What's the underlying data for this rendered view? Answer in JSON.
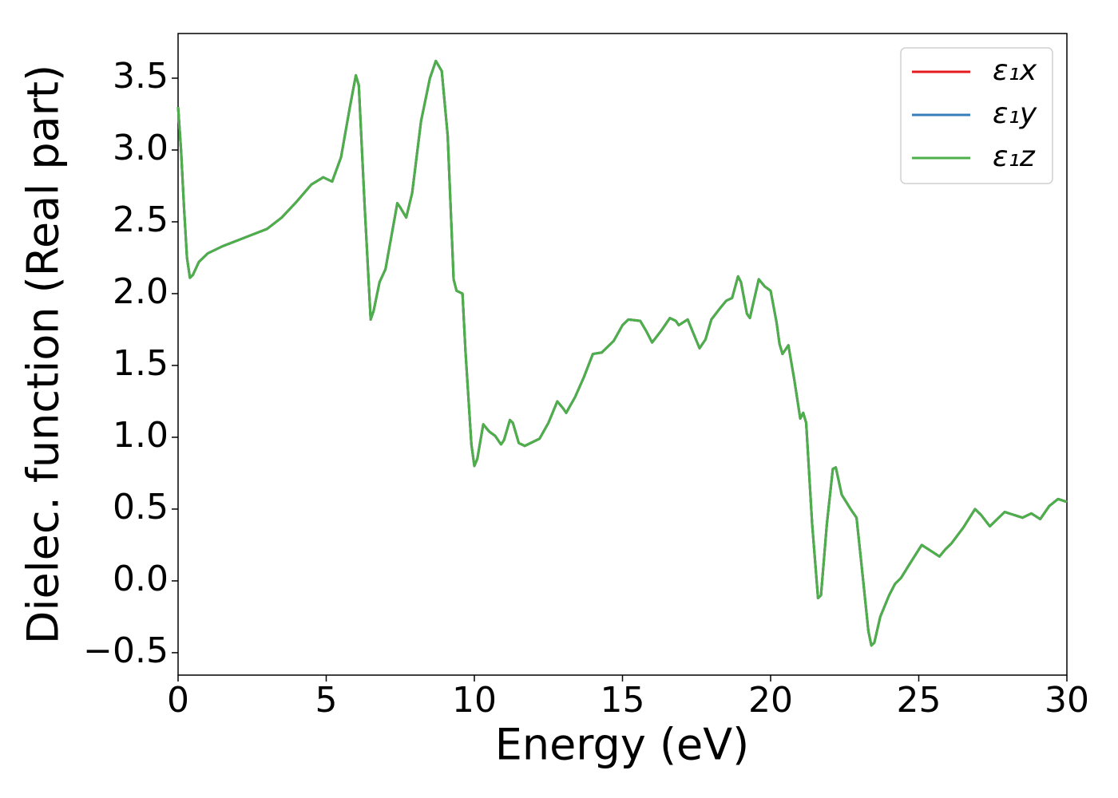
{
  "chart_data": {
    "type": "line",
    "xlabel": "Energy (eV)",
    "ylabel": "Dielec. function (Real part)",
    "x": [
      0,
      0.1,
      0.2,
      0.3,
      0.4,
      0.5,
      0.7,
      1.0,
      1.5,
      2.0,
      2.5,
      3.0,
      3.5,
      4.0,
      4.5,
      4.9,
      5.2,
      5.5,
      5.8,
      6.0,
      6.1,
      6.3,
      6.5,
      6.6,
      6.8,
      7.0,
      7.2,
      7.4,
      7.5,
      7.7,
      7.9,
      8.2,
      8.5,
      8.7,
      8.9,
      9.1,
      9.3,
      9.4,
      9.6,
      9.7,
      9.9,
      10.0,
      10.1,
      10.3,
      10.5,
      10.7,
      10.9,
      11.0,
      11.2,
      11.3,
      11.5,
      11.7,
      12.0,
      12.2,
      12.5,
      12.8,
      13.0,
      13.1,
      13.4,
      13.7,
      14.0,
      14.3,
      14.7,
      15.0,
      15.2,
      15.6,
      15.8,
      16.0,
      16.3,
      16.6,
      16.8,
      16.9,
      17.2,
      17.4,
      17.6,
      17.8,
      18.0,
      18.3,
      18.5,
      18.7,
      18.9,
      19.0,
      19.2,
      19.3,
      19.6,
      19.8,
      20.0,
      20.2,
      20.3,
      20.4,
      20.6,
      20.8,
      21.0,
      21.1,
      21.2,
      21.4,
      21.6,
      21.7,
      21.9,
      22.1,
      22.2,
      22.4,
      22.7,
      22.9,
      23.1,
      23.3,
      23.4,
      23.5,
      23.7,
      24.0,
      24.2,
      24.4,
      24.7,
      25.1,
      25.4,
      25.7,
      25.9,
      26.1,
      26.5,
      26.9,
      27.1,
      27.4,
      27.7,
      27.9,
      28.2,
      28.5,
      28.8,
      29.1,
      29.4,
      29.7,
      30.0
    ],
    "series": [
      {
        "name": "ε₁x",
        "color": "#e41a1c",
        "values": [
          3.3,
          3.0,
          2.6,
          2.25,
          2.11,
          2.13,
          2.22,
          2.28,
          2.33,
          2.37,
          2.41,
          2.45,
          2.53,
          2.64,
          2.76,
          2.81,
          2.78,
          2.95,
          3.3,
          3.52,
          3.45,
          2.6,
          1.82,
          1.88,
          2.08,
          2.17,
          2.4,
          2.63,
          2.6,
          2.53,
          2.7,
          3.2,
          3.5,
          3.62,
          3.55,
          3.1,
          2.1,
          2.02,
          2.0,
          1.6,
          0.95,
          0.8,
          0.85,
          1.09,
          1.04,
          1.01,
          0.95,
          0.98,
          1.12,
          1.1,
          0.96,
          0.94,
          0.97,
          0.99,
          1.1,
          1.25,
          1.2,
          1.17,
          1.28,
          1.42,
          1.58,
          1.59,
          1.67,
          1.78,
          1.82,
          1.81,
          1.74,
          1.66,
          1.74,
          1.83,
          1.81,
          1.78,
          1.82,
          1.72,
          1.62,
          1.68,
          1.82,
          1.9,
          1.95,
          1.97,
          2.12,
          2.08,
          1.86,
          1.83,
          2.1,
          2.05,
          2.02,
          1.8,
          1.65,
          1.58,
          1.64,
          1.4,
          1.13,
          1.17,
          1.1,
          0.4,
          -0.12,
          -0.1,
          0.4,
          0.78,
          0.79,
          0.6,
          0.5,
          0.44,
          0.05,
          -0.35,
          -0.45,
          -0.43,
          -0.25,
          -0.1,
          -0.02,
          0.02,
          0.12,
          0.25,
          0.21,
          0.17,
          0.22,
          0.26,
          0.37,
          0.5,
          0.46,
          0.38,
          0.44,
          0.48,
          0.46,
          0.44,
          0.47,
          0.43,
          0.52,
          0.57,
          0.55
        ]
      },
      {
        "name": "ε₁y",
        "color": "#377eb8",
        "values": [
          3.3,
          3.0,
          2.6,
          2.25,
          2.11,
          2.13,
          2.22,
          2.28,
          2.33,
          2.37,
          2.41,
          2.45,
          2.53,
          2.64,
          2.76,
          2.81,
          2.78,
          2.95,
          3.3,
          3.52,
          3.45,
          2.6,
          1.82,
          1.88,
          2.08,
          2.17,
          2.4,
          2.63,
          2.6,
          2.53,
          2.7,
          3.2,
          3.5,
          3.62,
          3.55,
          3.1,
          2.1,
          2.02,
          2.0,
          1.6,
          0.95,
          0.8,
          0.85,
          1.09,
          1.04,
          1.01,
          0.95,
          0.98,
          1.12,
          1.1,
          0.96,
          0.94,
          0.97,
          0.99,
          1.1,
          1.25,
          1.2,
          1.17,
          1.28,
          1.42,
          1.58,
          1.59,
          1.67,
          1.78,
          1.82,
          1.81,
          1.74,
          1.66,
          1.74,
          1.83,
          1.81,
          1.78,
          1.82,
          1.72,
          1.62,
          1.68,
          1.82,
          1.9,
          1.95,
          1.97,
          2.12,
          2.08,
          1.86,
          1.83,
          2.1,
          2.05,
          2.02,
          1.8,
          1.65,
          1.58,
          1.64,
          1.4,
          1.13,
          1.17,
          1.1,
          0.4,
          -0.12,
          -0.1,
          0.4,
          0.78,
          0.79,
          0.6,
          0.5,
          0.44,
          0.05,
          -0.35,
          -0.45,
          -0.43,
          -0.25,
          -0.1,
          -0.02,
          0.02,
          0.12,
          0.25,
          0.21,
          0.17,
          0.22,
          0.26,
          0.37,
          0.5,
          0.46,
          0.38,
          0.44,
          0.48,
          0.46,
          0.44,
          0.47,
          0.43,
          0.52,
          0.57,
          0.55
        ]
      },
      {
        "name": "ε₁z",
        "color": "#4daf4a",
        "values": [
          3.3,
          3.0,
          2.6,
          2.25,
          2.11,
          2.13,
          2.22,
          2.28,
          2.33,
          2.37,
          2.41,
          2.45,
          2.53,
          2.64,
          2.76,
          2.81,
          2.78,
          2.95,
          3.3,
          3.52,
          3.45,
          2.6,
          1.82,
          1.88,
          2.08,
          2.17,
          2.4,
          2.63,
          2.6,
          2.53,
          2.7,
          3.2,
          3.5,
          3.62,
          3.55,
          3.1,
          2.1,
          2.02,
          2.0,
          1.6,
          0.95,
          0.8,
          0.85,
          1.09,
          1.04,
          1.01,
          0.95,
          0.98,
          1.12,
          1.1,
          0.96,
          0.94,
          0.97,
          0.99,
          1.1,
          1.25,
          1.2,
          1.17,
          1.28,
          1.42,
          1.58,
          1.59,
          1.67,
          1.78,
          1.82,
          1.81,
          1.74,
          1.66,
          1.74,
          1.83,
          1.81,
          1.78,
          1.82,
          1.72,
          1.62,
          1.68,
          1.82,
          1.9,
          1.95,
          1.97,
          2.12,
          2.08,
          1.86,
          1.83,
          2.1,
          2.05,
          2.02,
          1.8,
          1.65,
          1.58,
          1.64,
          1.4,
          1.13,
          1.17,
          1.1,
          0.4,
          -0.12,
          -0.1,
          0.4,
          0.78,
          0.79,
          0.6,
          0.5,
          0.44,
          0.05,
          -0.35,
          -0.45,
          -0.43,
          -0.25,
          -0.1,
          -0.02,
          0.02,
          0.12,
          0.25,
          0.21,
          0.17,
          0.22,
          0.26,
          0.37,
          0.5,
          0.46,
          0.38,
          0.44,
          0.48,
          0.46,
          0.44,
          0.47,
          0.43,
          0.52,
          0.57,
          0.55
        ]
      }
    ],
    "xlim": [
      0,
      30
    ],
    "xticks": [
      0,
      5,
      10,
      15,
      20,
      25,
      30
    ],
    "ylim": [
      -0.656,
      3.811
    ],
    "yticks": [
      {
        "value": -0.5,
        "label": "−0.5"
      },
      {
        "value": 0,
        "label": "0.0"
      },
      0.5,
      {
        "value": 1,
        "label": "1.0"
      },
      1.5,
      {
        "value": 2,
        "label": "2.0"
      },
      2.5,
      {
        "value": 3,
        "label": "3.0"
      },
      3.5
    ],
    "grid": false,
    "legend": "upper right"
  }
}
